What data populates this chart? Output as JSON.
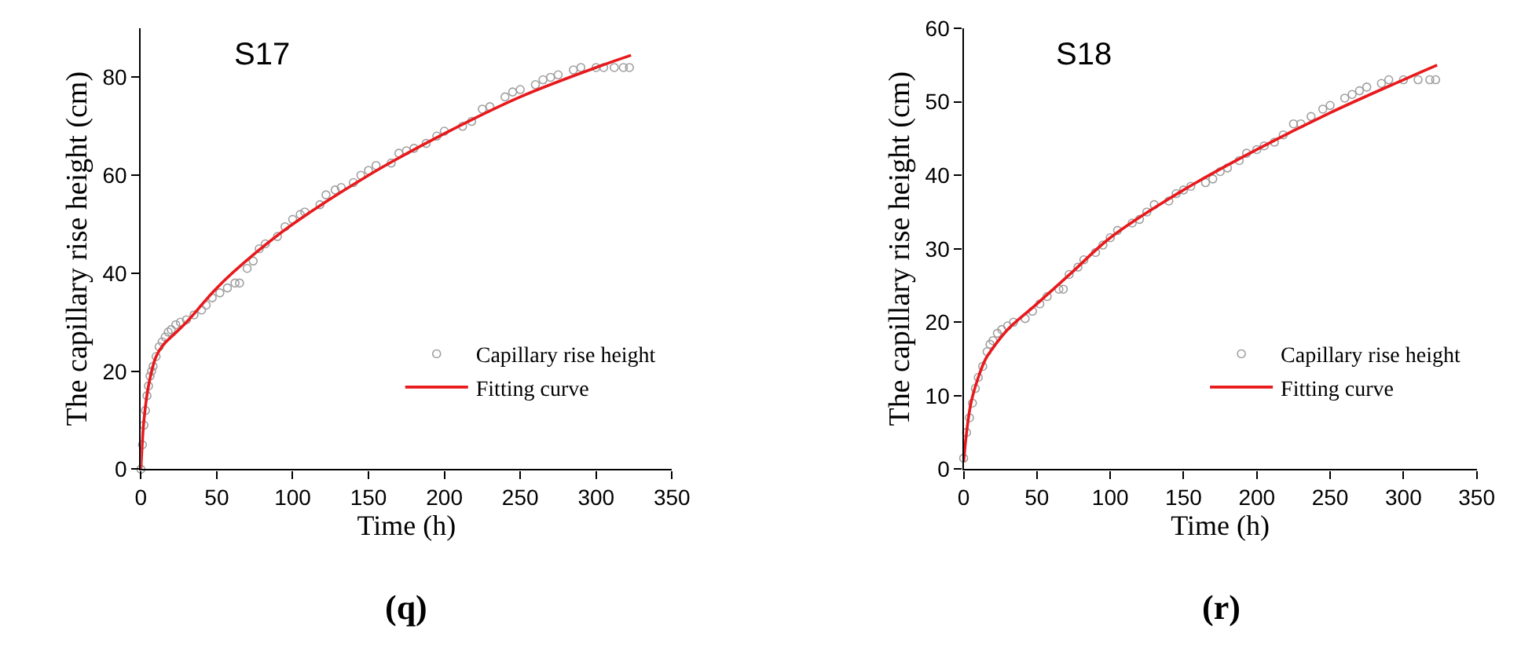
{
  "chart_data": [
    {
      "type": "line",
      "xlabel": "Time (h)",
      "ylabel": "The capillary rise height (cm)",
      "annotations": [
        "S17",
        "(q)"
      ],
      "xlim": [
        0,
        350
      ],
      "xticks": [
        0,
        50,
        100,
        150,
        200,
        250,
        300,
        350
      ],
      "ylim": [
        0,
        90
      ],
      "yticks": [
        0,
        20,
        40,
        60,
        80
      ],
      "legend": "bottom right",
      "series": [
        {
          "name": "Capillary rise height",
          "type": "scatter",
          "marker": "circle",
          "color": "#a0a0a0",
          "x": [
            0,
            1,
            2,
            3,
            4,
            5,
            6,
            7,
            8,
            10,
            12,
            14,
            16,
            18,
            20,
            23,
            26,
            30,
            35,
            40,
            43,
            47,
            52,
            57,
            62,
            65,
            70,
            74,
            78,
            82,
            90,
            95,
            100,
            105,
            108,
            118,
            122,
            128,
            132,
            140,
            145,
            150,
            155,
            165,
            170,
            175,
            180,
            188,
            195,
            200,
            212,
            218,
            225,
            230,
            240,
            245,
            250,
            260,
            265,
            270,
            275,
            285,
            290,
            300,
            305,
            312,
            318,
            322
          ],
          "values": [
            0,
            5,
            9,
            12,
            15,
            17,
            19,
            20,
            21,
            23,
            25,
            26,
            27,
            28,
            28.5,
            29.5,
            30,
            30.5,
            31.5,
            32.5,
            33.5,
            35,
            36,
            37,
            38,
            38,
            41,
            42.5,
            45,
            46,
            47.5,
            49.5,
            51,
            52,
            52.5,
            54,
            56,
            57,
            57.5,
            58.5,
            60,
            61,
            62,
            62.5,
            64.5,
            65,
            65.5,
            66.5,
            68,
            69,
            70,
            71,
            73.5,
            74,
            76,
            77,
            77.5,
            78.5,
            79.5,
            80,
            80.5,
            81.5,
            82,
            82,
            82,
            82,
            82,
            82
          ]
        },
        {
          "name": "Fitting curve",
          "line_style": "solid",
          "color": "#e8191c",
          "x": [
            0,
            2,
            5,
            10,
            15,
            20,
            30,
            50,
            75,
            100,
            150,
            200,
            250,
            300,
            323
          ],
          "values": [
            0,
            10,
            17,
            23,
            25.5,
            27,
            30,
            37,
            44,
            50,
            60,
            68.5,
            76,
            82,
            84.5
          ]
        }
      ]
    },
    {
      "type": "line",
      "xlabel": "Time (h)",
      "ylabel": "The capillary rise height (cm)",
      "annotations": [
        "S18",
        "(r)"
      ],
      "xlim": [
        0,
        350
      ],
      "xticks": [
        0,
        50,
        100,
        150,
        200,
        250,
        300,
        350
      ],
      "ylim": [
        0,
        60
      ],
      "yticks": [
        0,
        10,
        20,
        30,
        40,
        50,
        60
      ],
      "legend": "bottom right",
      "series": [
        {
          "name": "Capillary rise height",
          "type": "scatter",
          "marker": "circle",
          "color": "#a0a0a0",
          "x": [
            0,
            2,
            4,
            6,
            8,
            10,
            13,
            16,
            18,
            20,
            23,
            26,
            30,
            34,
            42,
            47,
            52,
            57,
            65,
            68,
            72,
            78,
            82,
            90,
            95,
            100,
            105,
            115,
            120,
            125,
            130,
            140,
            145,
            150,
            155,
            165,
            170,
            175,
            180,
            188,
            193,
            200,
            205,
            212,
            218,
            225,
            230,
            237,
            245,
            250,
            260,
            265,
            270,
            275,
            285,
            290,
            300,
            310,
            318,
            322
          ],
          "values": [
            1.5,
            5,
            7,
            9,
            11,
            12.5,
            14,
            16,
            17,
            17.5,
            18.5,
            19,
            19.5,
            20,
            20.5,
            21.5,
            22.5,
            23.5,
            24.5,
            24.5,
            26.5,
            27.5,
            28.5,
            29.5,
            30.5,
            31.5,
            32.5,
            33.5,
            34,
            35,
            36,
            36.5,
            37.5,
            38,
            38.5,
            39,
            39.5,
            40.5,
            41,
            42,
            43,
            43.5,
            44,
            44.5,
            45.5,
            47,
            47,
            48,
            49,
            49.5,
            50.5,
            51,
            51.5,
            52,
            52.5,
            53,
            53,
            53,
            53,
            53
          ]
        },
        {
          "name": "Fitting curve",
          "line_style": "solid",
          "color": "#e8191c",
          "x": [
            0,
            2,
            5,
            10,
            15,
            20,
            30,
            50,
            75,
            100,
            150,
            200,
            250,
            300,
            323
          ],
          "values": [
            1,
            5,
            9,
            12.5,
            15,
            16.5,
            19,
            22.5,
            27,
            31.5,
            38,
            43.5,
            48.5,
            53,
            55
          ]
        }
      ]
    }
  ]
}
